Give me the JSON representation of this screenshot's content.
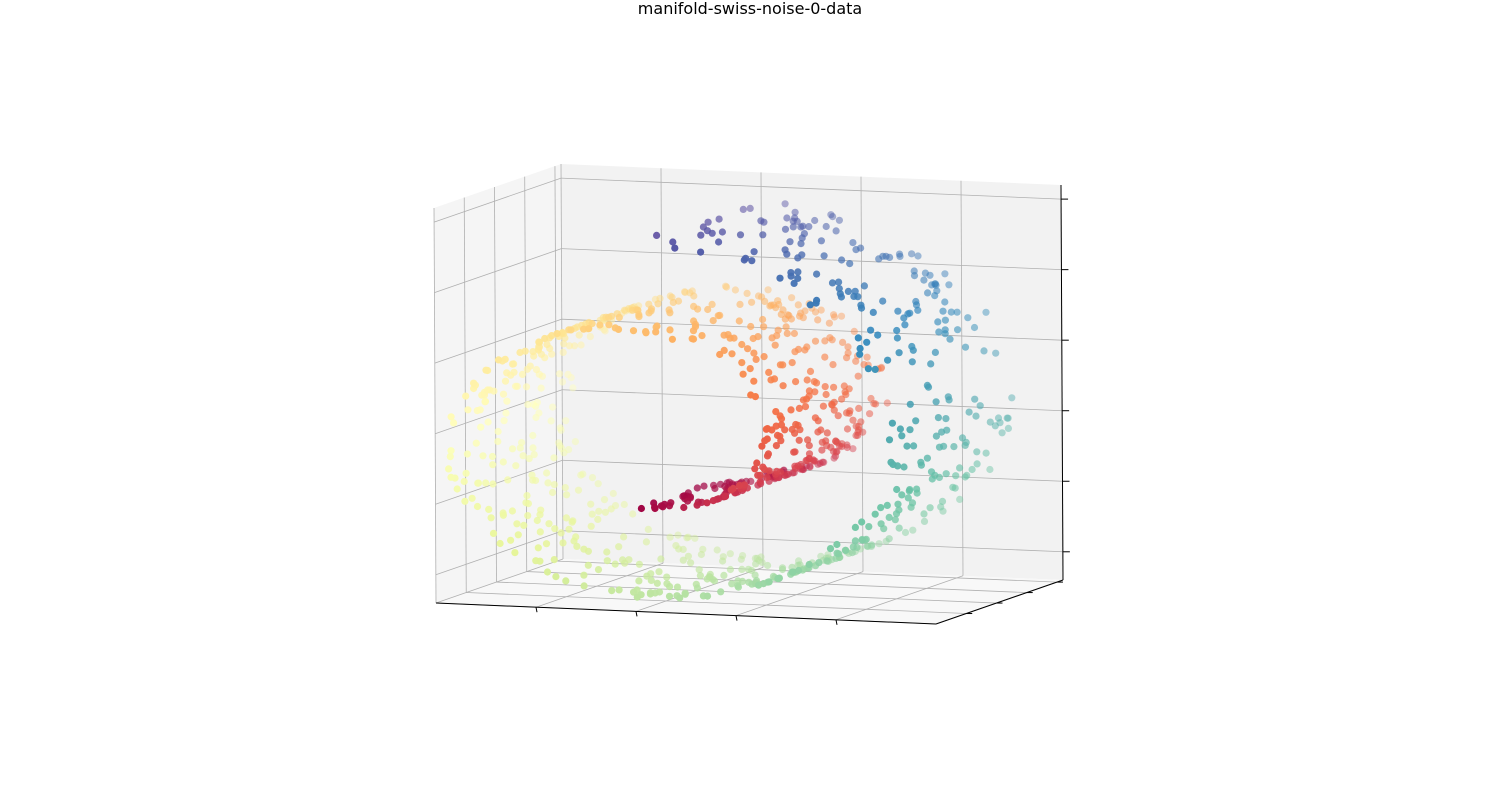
{
  "chart_data": {
    "type": "scatter",
    "title": "manifold-swiss-noise-0-data",
    "projection": "3d",
    "colormap": "Spectral",
    "colormap_stops": [
      "#9e0142",
      "#d53e4f",
      "#f46d43",
      "#fdae61",
      "#fee08b",
      "#ffffbf",
      "#e6f598",
      "#abdda4",
      "#66c2a5",
      "#3288bd",
      "#5e4fa2"
    ],
    "grid": true,
    "tick_labels_shown": false,
    "pane_color": "#f2f2f2",
    "grid_color": "#b0b0b0",
    "x": {
      "label": "",
      "range": [
        -10,
        15
      ],
      "ticks": [
        -10,
        -5,
        0,
        5,
        10,
        15
      ]
    },
    "y": {
      "label": "",
      "range": [
        0,
        21
      ],
      "ticks": [
        0,
        5,
        10,
        15,
        20
      ]
    },
    "z": {
      "label": "",
      "range": [
        -12,
        16
      ],
      "ticks": [
        -10,
        -5,
        0,
        5,
        10,
        15
      ]
    },
    "series": [
      {
        "point_count": 1000,
        "generator": "swiss roll: x = t*cos(t), y = height, z = t*sin(t), color by t",
        "t_range": [
          4.71,
          14.14
        ],
        "y_range": [
          0,
          21
        ],
        "noise": 0
      }
    ]
  }
}
